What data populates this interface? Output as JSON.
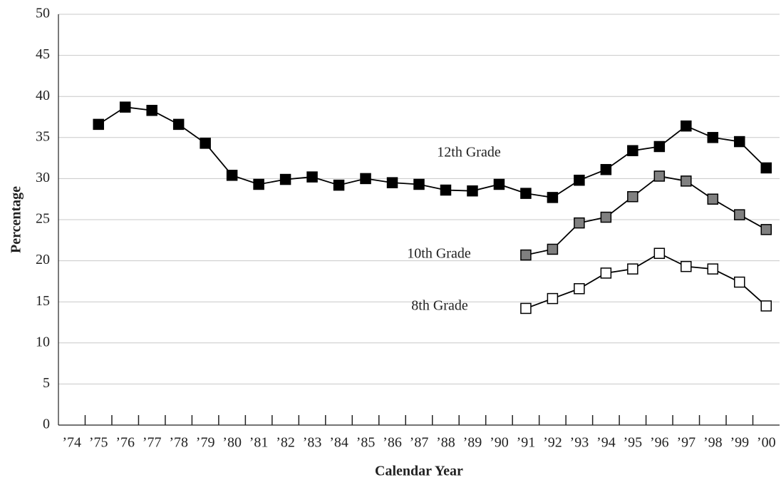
{
  "chart_data": {
    "type": "line",
    "x_label": "Calendar Year",
    "y_label": "Percentage",
    "categories": [
      "’74",
      "’75",
      "’76",
      "’77",
      "’78",
      "’79",
      "’80",
      "’81",
      "’82",
      "’83",
      "’84",
      "’85",
      "’86",
      "’87",
      "’88",
      "’89",
      "’90",
      "’91",
      "’92",
      "’93",
      "’94",
      "’95",
      "’96",
      "’97",
      "’98",
      "’99",
      "’00"
    ],
    "series": [
      {
        "name": "12th Grade",
        "color": "#000000",
        "values": [
          null,
          36.6,
          38.7,
          38.3,
          36.6,
          34.3,
          30.4,
          29.3,
          29.9,
          30.2,
          29.2,
          30.0,
          29.5,
          29.3,
          28.6,
          28.5,
          29.3,
          28.2,
          27.7,
          29.8,
          31.1,
          33.4,
          33.9,
          36.4,
          35.0,
          34.5,
          31.3
        ]
      },
      {
        "name": "10th Grade",
        "color": "#808080",
        "values": [
          null,
          null,
          null,
          null,
          null,
          null,
          null,
          null,
          null,
          null,
          null,
          null,
          null,
          null,
          null,
          null,
          null,
          20.7,
          21.4,
          24.6,
          25.3,
          27.8,
          30.3,
          29.7,
          27.5,
          25.6,
          23.8
        ]
      },
      {
        "name": "8th Grade",
        "color": "#ffffff",
        "values": [
          null,
          null,
          null,
          null,
          null,
          null,
          null,
          null,
          null,
          null,
          null,
          null,
          null,
          null,
          null,
          null,
          null,
          14.2,
          15.4,
          16.6,
          18.5,
          19.0,
          20.9,
          19.3,
          19.0,
          17.4,
          14.5
        ]
      }
    ],
    "ylim": [
      0,
      50
    ],
    "yticks": [
      0,
      5,
      10,
      15,
      20,
      25,
      30,
      35,
      40,
      45,
      50
    ],
    "grid": true
  }
}
